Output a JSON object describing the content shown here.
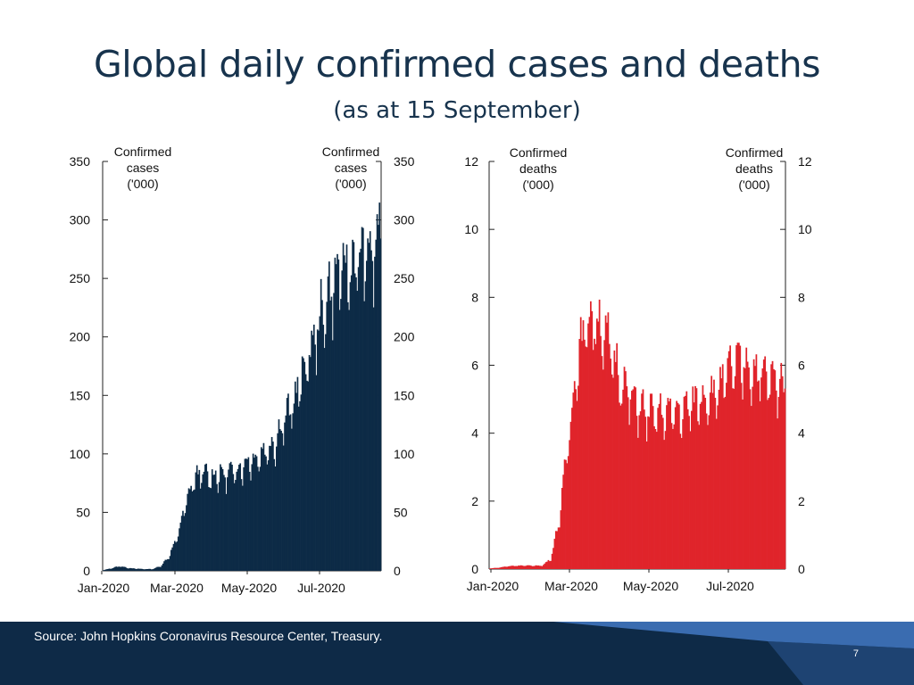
{
  "slide": {
    "title": "Global daily confirmed cases and deaths",
    "subtitle": "(as at 15 September)",
    "source": "Source: John Hopkins Coronavirus Resource Center, Treasury.",
    "page_number": "7"
  },
  "colors": {
    "title": "#17334d",
    "cases": "#0d2b46",
    "deaths": "#e0242b",
    "footer": "#0e2a47",
    "footer_stripe": "#3a6cb0"
  },
  "chart_data": [
    {
      "type": "bar",
      "name": "cases",
      "left_axis_label": [
        "Confirmed",
        "cases",
        "('000)"
      ],
      "right_axis_label": [
        "Confirmed",
        "cases",
        "('000)"
      ],
      "ylim": [
        0,
        350
      ],
      "yticks": [
        "0",
        "50",
        "100",
        "150",
        "200",
        "250",
        "300",
        "350"
      ],
      "xticks": [
        "Jan-2020",
        "Mar-2020",
        "May-2020",
        "Jul-2020"
      ],
      "x_range": [
        "2020-01-22",
        "2020-09-15"
      ],
      "color": "#0d2b46",
      "series": [
        {
          "x_start": "2020-01-22",
          "x_step_days": 7,
          "weekly_values": [
            0.6,
            2.2,
            4,
            2.5,
            1.8,
            1.5,
            1.5,
            4,
            12,
            28,
            55,
            77,
            83,
            80,
            82,
            82,
            85,
            90,
            95,
            98,
            104,
            110,
            128,
            138,
            160,
            180,
            205,
            225,
            245,
            255,
            258,
            265,
            270,
            272,
            292
          ]
        }
      ]
    },
    {
      "type": "bar",
      "name": "deaths",
      "left_axis_label": [
        "Confirmed",
        "deaths",
        "('000)"
      ],
      "right_axis_label": [
        "Confirmed",
        "deaths",
        "('000)"
      ],
      "ylim": [
        0,
        12
      ],
      "yticks": [
        "0",
        "2",
        "4",
        "6",
        "8",
        "10",
        "12"
      ],
      "xticks": [
        "Jan-2020",
        "Mar-2020",
        "May-2020",
        "Jul-2020"
      ],
      "x_range": [
        "2020-01-22",
        "2020-09-15"
      ],
      "color": "#e0242b",
      "series": [
        {
          "x_start": "2020-01-22",
          "x_step_days": 7,
          "weekly_values": [
            0.02,
            0.04,
            0.08,
            0.1,
            0.1,
            0.1,
            0.1,
            0.3,
            1.5,
            3.8,
            6,
            7.2,
            7.4,
            7,
            6.3,
            5.6,
            5.1,
            4.8,
            4.6,
            4.5,
            4.6,
            4.6,
            4.6,
            4.8,
            5.0,
            5.1,
            5.2,
            5.6,
            6.0,
            6.0,
            5.9,
            5.7,
            5.6,
            5.5,
            5.4
          ]
        }
      ]
    }
  ]
}
